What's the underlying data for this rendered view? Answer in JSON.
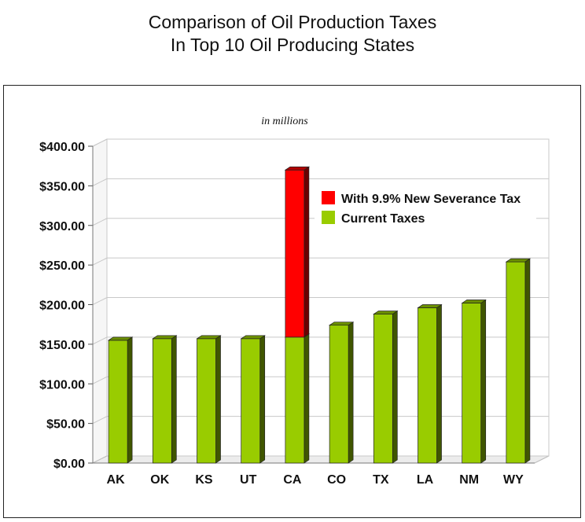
{
  "chart_data": {
    "type": "bar",
    "title": [
      "Comparison of Oil Production Taxes",
      "In Top 10 Oil Producing States"
    ],
    "subtitle": "in millions",
    "categories": [
      "AK",
      "OK",
      "KS",
      "UT",
      "CA",
      "CO",
      "TX",
      "LA",
      "NM",
      "WY"
    ],
    "stacked": true,
    "series": [
      {
        "name": "Current Taxes",
        "color": "#99cc00",
        "values": [
          155,
          157,
          157,
          157,
          159,
          174,
          188,
          196,
          202,
          254
        ]
      },
      {
        "name": "With 9.9% New Severance Tax",
        "color": "#ff0000",
        "values": [
          0,
          0,
          0,
          0,
          211,
          0,
          0,
          0,
          0,
          0
        ]
      }
    ],
    "yticks": [
      "$0.00",
      "$50.00",
      "$100.00",
      "$150.00",
      "$200.00",
      "$250.00",
      "$300.00",
      "$350.00",
      "$400.00"
    ],
    "ylim": [
      0,
      400
    ],
    "grid": true,
    "legend_position": "top-right"
  }
}
